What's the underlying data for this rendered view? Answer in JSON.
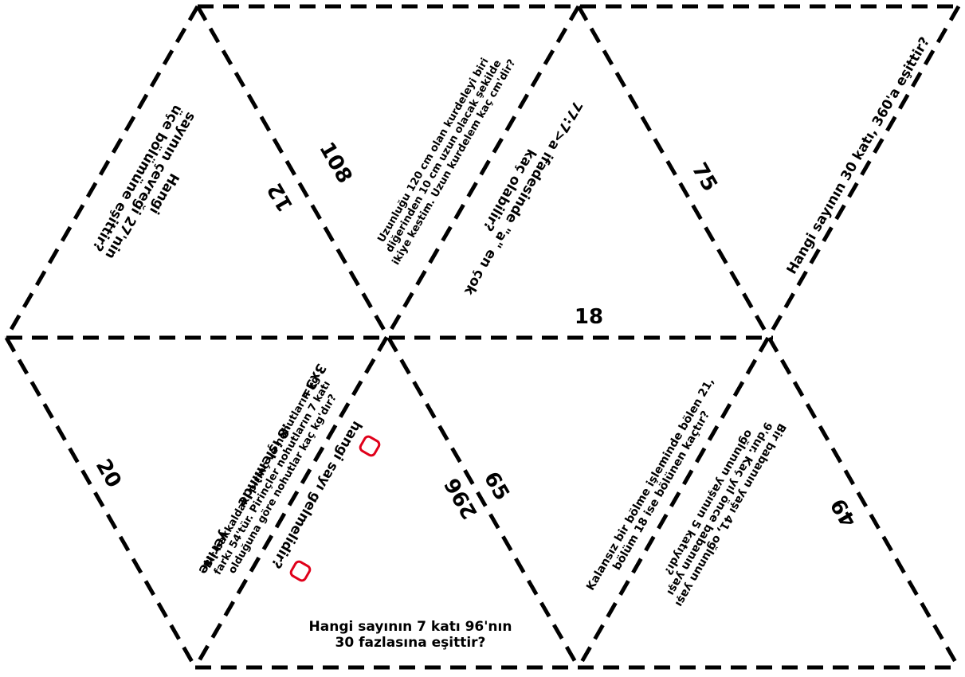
{
  "colors": {
    "line": "#000000",
    "box": "#e0001a",
    "background": "#ffffff"
  },
  "numbers": {
    "n108": "108",
    "n12": "12",
    "n75": "75",
    "n18": "18",
    "n20": "20",
    "n296": "296",
    "n65": "65",
    "n49": "49"
  },
  "questions": {
    "q27": [
      "Hangi",
      "sayının çevreği 27'nin",
      "üçe bölümüne eşittir?"
    ],
    "ribbon": [
      "Uzunluğu 120 cm olan kurdeleyi biri",
      "diğerinden 10 cm uzun olacak şekilde",
      "ikiye kestim. Uzun kurdelem kaç cm'dir?"
    ],
    "ineq": [
      "77:7>a ifadesinde \"a\" en çok",
      "kaç olabilir?"
    ],
    "q360": [
      "Hangi sayının 30 katı, 360'a eşittir?"
    ],
    "rice": [
      "Bir bakkaldaki pirinç ve nohutların kg",
      "farkı 54'tür. Pirinçler nohutların 7 katı",
      "olduğuna göre nohutlar kaç kg'dır?"
    ],
    "division_parts": [
      "3x3=",
      ":8 işleminde",
      "yerine",
      "hangi sayı gelmelidir?"
    ],
    "q96": [
      "Hangi sayının 7 katı 96'nın",
      "30 fazlasına eşittir?"
    ],
    "divisor": [
      "Kalansız bir bölme işleminde bölen 21,",
      "bölüm 18 ise bölünen kaçtır?"
    ],
    "father": [
      "Bir babanın yaşı 41, oğlunun yaşı",
      "9'dur. Kaç yıl önce babanın yaşı",
      "oğlunun yaşının 5 katıydı?"
    ]
  }
}
